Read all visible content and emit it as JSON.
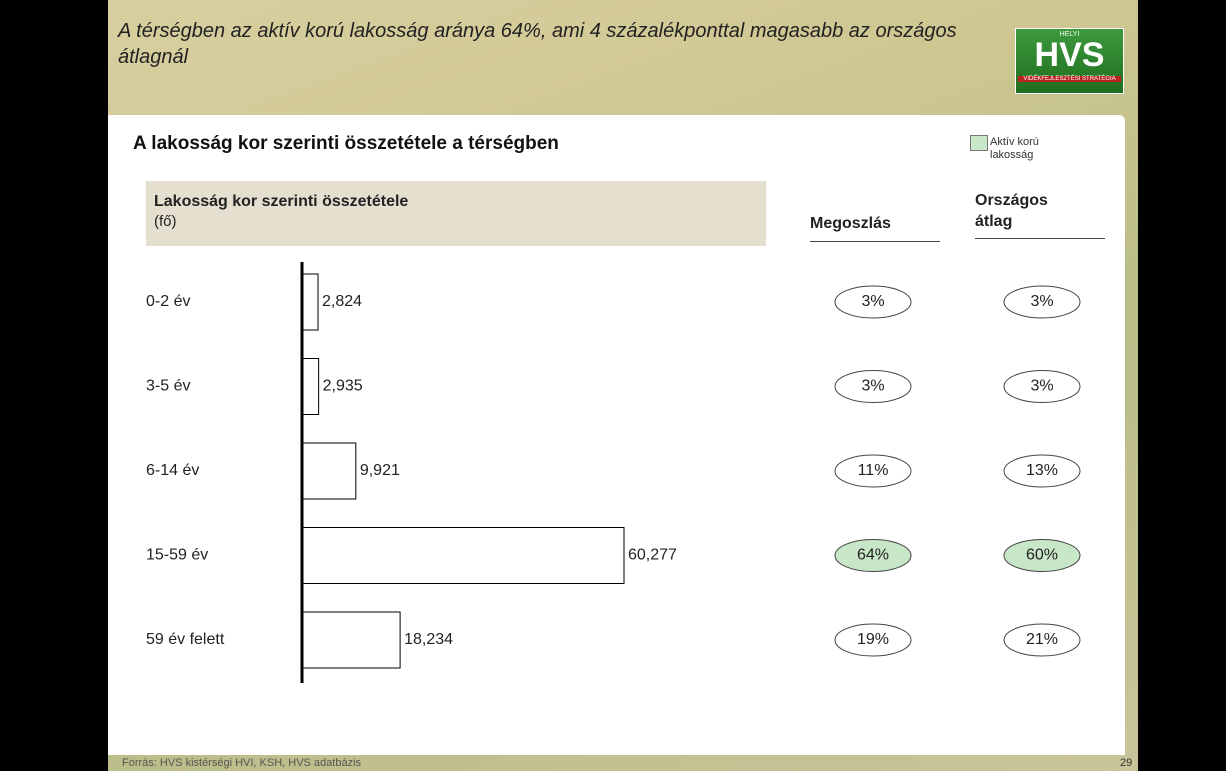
{
  "slide": {
    "headline": "A térségben az aktív korú lakosság aránya 64%, ami 4 százalékponttal magasabb az országos átlagnál",
    "logo": {
      "top": "HELYI",
      "main": "HVS",
      "sub": "VIDÉKFEJLESZTÉSI STRATÉGIA"
    },
    "source": "Forrás:  HVS kistérségi HVI, KSH, HVS adatbázis",
    "page_number": "29"
  },
  "chart_data": {
    "type": "bar",
    "orientation": "horizontal",
    "title": "A lakosság kor szerinti összetétele a térségben",
    "subtitle": "Lakosság kor szerinti összetétele",
    "unit_label": "(fő)",
    "categories": [
      "0-2 év",
      "3-5 év",
      "6-14 év",
      "15-59 év",
      "59 év felett"
    ],
    "values": [
      2824,
      2935,
      9921,
      60277,
      18234
    ],
    "value_labels": [
      "2,824",
      "2,935",
      "9,921",
      "60,277",
      "18,234"
    ],
    "color": "#ffffff",
    "legend": {
      "label": "Aktív korú lakosság",
      "color": "#c8e6c8"
    },
    "highlight": [
      false,
      false,
      false,
      true,
      false
    ],
    "columns": [
      {
        "name": "Megoszlás",
        "values": [
          3,
          3,
          11,
          64,
          19
        ],
        "value_labels": [
          "3%",
          "3%",
          "11%",
          "64%",
          "19%"
        ]
      },
      {
        "name": "Országos átlag",
        "values": [
          3,
          3,
          13,
          60,
          21
        ],
        "value_labels": [
          "3%",
          "3%",
          "13%",
          "60%",
          "21%"
        ]
      }
    ]
  }
}
